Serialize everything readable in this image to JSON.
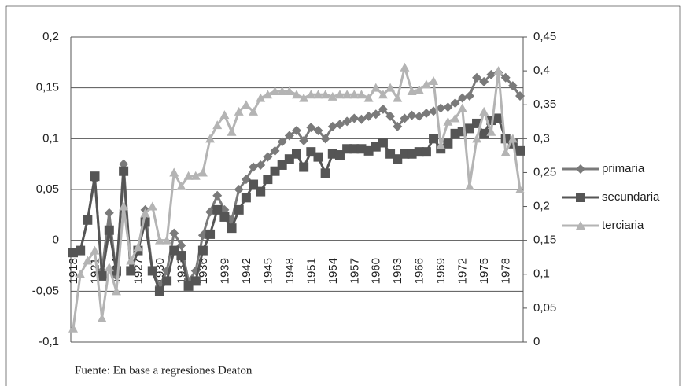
{
  "chart_data": {
    "type": "line",
    "note": "Fuente: En base a regresiones Deaton",
    "categories": [
      "1918",
      null,
      null,
      "1921",
      null,
      null,
      "1924",
      null,
      null,
      "1927",
      null,
      null,
      "1930",
      null,
      null,
      "1933",
      null,
      null,
      "1936",
      null,
      null,
      "1939",
      null,
      null,
      "1942",
      null,
      null,
      "1945",
      null,
      null,
      "1948",
      null,
      null,
      "1951",
      null,
      null,
      "1954",
      null,
      null,
      "1957",
      null,
      null,
      "1960",
      null,
      null,
      "1963",
      null,
      null,
      "1966",
      null,
      null,
      "1969",
      null,
      null,
      "1972",
      null,
      null,
      "1975",
      null,
      null,
      "1978",
      null,
      null
    ],
    "ylim": [
      -0.1,
      0.2
    ],
    "yticks": [
      {
        "value": -0.1,
        "label": "-0,1"
      },
      {
        "value": -0.05,
        "label": "-0,05"
      },
      0,
      {
        "value": 0.05,
        "label": "0,05"
      },
      {
        "value": 0.1,
        "label": "0,1"
      },
      {
        "value": 0.15,
        "label": "0,15"
      },
      {
        "value": 0.2,
        "label": "0,2"
      }
    ],
    "y2lim": [
      0,
      0.45
    ],
    "y2ticks": [
      0,
      {
        "value": 0.05,
        "label": "0,05"
      },
      {
        "value": 0.1,
        "label": "0,1"
      },
      {
        "value": 0.15,
        "label": "0,15"
      },
      {
        "value": 0.2,
        "label": "0,2"
      },
      {
        "value": 0.25,
        "label": "0,25"
      },
      {
        "value": 0.3,
        "label": "0,3"
      },
      {
        "value": 0.35,
        "label": "0,35"
      },
      {
        "value": 0.4,
        "label": "0,4"
      },
      {
        "value": 0.45,
        "label": "0,45"
      }
    ],
    "grid": true,
    "legend": "right",
    "series": [
      {
        "name": "primaria",
        "color": "#7a7a7a",
        "marker": "diamond",
        "values": [
          -0.012,
          -0.01,
          0.02,
          0.06,
          -0.03,
          0.027,
          -0.035,
          0.075,
          -0.03,
          -0.01,
          0.03,
          -0.03,
          -0.045,
          -0.03,
          0.007,
          -0.005,
          -0.04,
          -0.03,
          0.005,
          0.028,
          0.044,
          0.03,
          0.02,
          0.05,
          0.06,
          0.072,
          0.074,
          0.082,
          0.088,
          0.097,
          0.103,
          0.108,
          0.098,
          0.111,
          0.108,
          0.1,
          0.112,
          0.114,
          0.117,
          0.12,
          0.119,
          0.122,
          0.124,
          0.129,
          0.122,
          0.112,
          0.12,
          0.123,
          0.122,
          0.125,
          0.127,
          0.13,
          0.131,
          0.135,
          0.14,
          0.142,
          0.16,
          0.156,
          0.163,
          0.165,
          0.16,
          0.152,
          0.142
        ]
      },
      {
        "name": "secundaria",
        "color": "#555555",
        "marker": "square",
        "values": [
          -0.012,
          -0.01,
          0.02,
          0.063,
          -0.035,
          0.01,
          -0.03,
          0.068,
          -0.03,
          -0.01,
          0.018,
          -0.03,
          -0.05,
          -0.04,
          -0.01,
          -0.015,
          -0.045,
          -0.04,
          -0.01,
          0.006,
          0.03,
          0.023,
          0.012,
          0.03,
          0.042,
          0.055,
          0.048,
          0.06,
          0.068,
          0.074,
          0.08,
          0.085,
          0.072,
          0.087,
          0.082,
          0.066,
          0.085,
          0.084,
          0.09,
          0.09,
          0.09,
          0.088,
          0.092,
          0.096,
          0.085,
          0.08,
          0.085,
          0.085,
          0.087,
          0.087,
          0.1,
          0.09,
          0.095,
          0.105,
          0.107,
          0.11,
          0.115,
          0.105,
          0.118,
          0.12,
          0.1,
          0.095,
          0.088
        ]
      },
      {
        "name": "terciaria",
        "color": "#b4b4b4",
        "marker": "triangle",
        "axis": "y2",
        "values": [
          0.02,
          0.1,
          0.12,
          0.135,
          0.035,
          0.11,
          0.075,
          0.2,
          0.12,
          0.14,
          0.19,
          0.2,
          0.15,
          0.15,
          0.25,
          0.23,
          0.245,
          0.245,
          0.25,
          0.3,
          0.32,
          0.335,
          0.31,
          0.34,
          0.35,
          0.34,
          0.36,
          0.365,
          0.37,
          0.37,
          0.37,
          0.365,
          0.36,
          0.365,
          0.365,
          0.365,
          0.362,
          0.365,
          0.365,
          0.365,
          0.365,
          0.36,
          0.375,
          0.365,
          0.375,
          0.36,
          0.405,
          0.37,
          0.372,
          0.38,
          0.385,
          0.29,
          0.325,
          0.33,
          0.345,
          0.23,
          0.3,
          0.34,
          0.31,
          0.4,
          0.28,
          0.3,
          0.225
        ]
      }
    ]
  }
}
